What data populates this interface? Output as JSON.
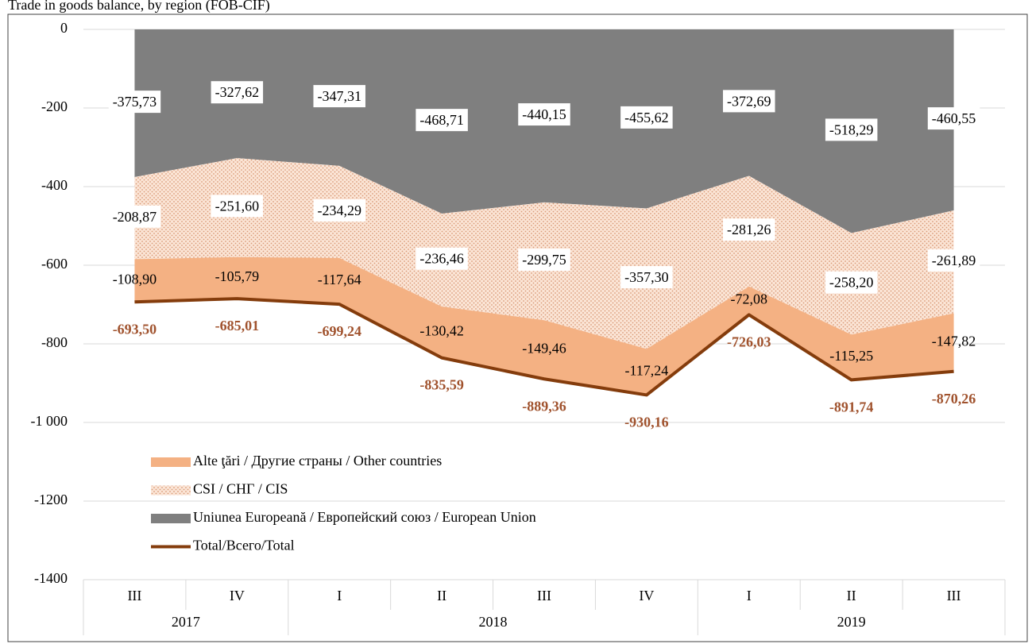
{
  "chart_data": {
    "type": "stacked_area_line",
    "title": "Trade in goods balance, by region (FOB-CIF)",
    "groups": [
      {
        "label": "2017",
        "categories": [
          "III",
          "IV"
        ]
      },
      {
        "label": "2018",
        "categories": [
          "I",
          "II",
          "III",
          "IV"
        ]
      },
      {
        "label": "2019",
        "categories": [
          "I",
          "II",
          "III"
        ]
      }
    ],
    "series": [
      {
        "name": "Alte ţări / Другие страны / Other countries",
        "kind": "area",
        "color": "#f4b183",
        "values": [
          -108.9,
          -105.79,
          -117.64,
          -130.42,
          -149.46,
          -117.24,
          -72.08,
          -115.25,
          -147.82
        ],
        "value_labels": [
          "-108,90",
          "-105,79",
          "-117,64",
          "-130,42",
          "-149,46",
          "-117,24",
          "-72,08",
          "-115,25",
          "-147,82"
        ]
      },
      {
        "name": "CSI / СНГ / CIS",
        "kind": "area",
        "color": "#e9b497",
        "values": [
          -208.87,
          -251.6,
          -234.29,
          -236.46,
          -299.75,
          -357.3,
          -281.26,
          -258.2,
          -261.89
        ],
        "value_labels": [
          "-208,87",
          "-251,60",
          "-234,29",
          "-236,46",
          "-299,75",
          "-357,30",
          "-281,26",
          "-258,20",
          "-261,89"
        ]
      },
      {
        "name": "Uniunea Europeană / Европейский союз / European Union",
        "kind": "area",
        "color": "#7f7f7f",
        "values": [
          -375.73,
          -327.62,
          -347.31,
          -468.71,
          -440.15,
          -455.62,
          -372.69,
          -518.29,
          -460.55
        ],
        "value_labels": [
          "-375,73",
          "-327,62",
          "-347,31",
          "-468,71",
          "-440,15",
          "-455,62",
          "-372,69",
          "-518,29",
          "-460,55"
        ]
      },
      {
        "name": "Total/Всего/Total",
        "kind": "line",
        "color": "#843c0c",
        "values": [
          -693.5,
          -685.01,
          -699.24,
          -835.59,
          -889.36,
          -930.16,
          -726.03,
          -891.74,
          -870.26
        ],
        "value_labels": [
          "-693,50",
          "-685,01",
          "-699,24",
          "-835,59",
          "-889,36",
          "-930,16",
          "-726,03",
          "-891,74",
          "-870,26"
        ]
      }
    ],
    "ylim": [
      -1400,
      0
    ],
    "yticks": [
      0,
      -200,
      -400,
      -600,
      -800,
      {
        "value": -1000,
        "label": "-1 000"
      },
      -1200,
      -1400
    ]
  }
}
